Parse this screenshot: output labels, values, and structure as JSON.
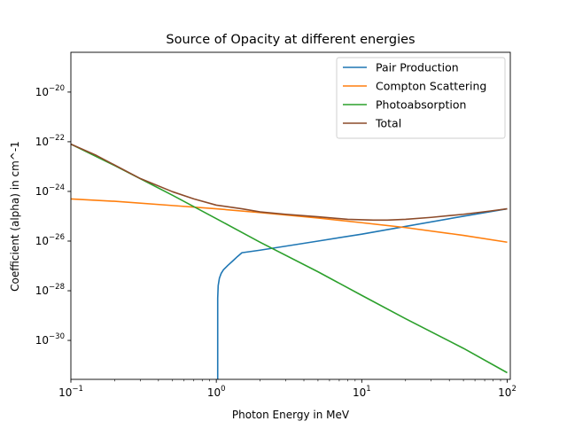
{
  "chart_data": {
    "type": "line",
    "title": "Source of Opacity at different energies",
    "xlabel": "Photon Energy in MeV",
    "ylabel": "Coefficient (alpha) in cm^-1",
    "xscale": "log",
    "yscale": "log",
    "xlim": [
      0.1,
      105
    ],
    "ylim": [
      2.7e-32,
      4e-19
    ],
    "xticks": [
      {
        "value": 0.1,
        "label": "10^-1",
        "base": "10",
        "exp": "−1"
      },
      {
        "value": 1,
        "label": "10^0",
        "base": "10",
        "exp": "0"
      },
      {
        "value": 10,
        "label": "10^1",
        "base": "10",
        "exp": "1"
      },
      {
        "value": 100,
        "label": "10^2",
        "base": "10",
        "exp": "2"
      }
    ],
    "yticks": [
      {
        "value": 1e-30,
        "label": "10^-30",
        "base": "10",
        "exp": "−30"
      },
      {
        "value": 1e-28,
        "label": "10^-28",
        "base": "10",
        "exp": "−28"
      },
      {
        "value": 1e-26,
        "label": "10^-26",
        "base": "10",
        "exp": "−26"
      },
      {
        "value": 1e-24,
        "label": "10^-24",
        "base": "10",
        "exp": "−24"
      },
      {
        "value": 1e-22,
        "label": "10^-22",
        "base": "10",
        "exp": "−22"
      },
      {
        "value": 1e-20,
        "label": "10^-20",
        "base": "10",
        "exp": "−20"
      }
    ],
    "grid": false,
    "legend_position": "top-right",
    "series": [
      {
        "name": "Pair Production",
        "color": "#1f77b4",
        "points": [
          [
            1.022,
            1e-32
          ],
          [
            1.022,
            5e-29
          ],
          [
            1.03,
            1.6e-28
          ],
          [
            1.05,
            3.2e-28
          ],
          [
            1.08,
            5e-28
          ],
          [
            1.12,
            7e-28
          ],
          [
            1.2,
            1.05e-27
          ],
          [
            1.3,
            1.6e-27
          ],
          [
            1.4,
            2.4e-27
          ],
          [
            1.5,
            3.4e-27
          ],
          [
            2,
            4.3e-27
          ],
          [
            5,
            1e-26
          ],
          [
            10,
            1.9e-26
          ],
          [
            20,
            3.9e-26
          ],
          [
            50,
            1e-25
          ],
          [
            100,
            2e-25
          ]
        ]
      },
      {
        "name": "Compton Scattering",
        "color": "#ff7f0e",
        "points": [
          [
            0.1,
            5e-25
          ],
          [
            0.2,
            4e-25
          ],
          [
            0.5,
            2.7e-25
          ],
          [
            1,
            2e-25
          ],
          [
            2,
            1.4e-25
          ],
          [
            5,
            8.5e-26
          ],
          [
            10,
            5.5e-26
          ],
          [
            20,
            3.5e-26
          ],
          [
            50,
            1.7e-26
          ],
          [
            100,
            9e-27
          ]
        ]
      },
      {
        "name": "Photoabsorption",
        "color": "#2ca02c",
        "points": [
          [
            0.1,
            8e-23
          ],
          [
            0.2,
            1.1e-23
          ],
          [
            0.5,
            7e-25
          ],
          [
            1,
            8e-26
          ],
          [
            2,
            9e-27
          ],
          [
            5,
            5.8e-28
          ],
          [
            10,
            6.5e-29
          ],
          [
            20,
            7.5e-30
          ],
          [
            50,
            4.8e-31
          ],
          [
            100,
            5e-32
          ]
        ]
      },
      {
        "name": "Total",
        "color": "#8c4b2a",
        "points": [
          [
            0.1,
            8e-23
          ],
          [
            0.15,
            2.8e-23
          ],
          [
            0.2,
            1.15e-23
          ],
          [
            0.3,
            3.3e-24
          ],
          [
            0.5,
            9.7e-25
          ],
          [
            0.7,
            5e-25
          ],
          [
            1,
            2.8e-25
          ],
          [
            1.5,
            2e-25
          ],
          [
            2,
            1.5e-25
          ],
          [
            3,
            1.2e-25
          ],
          [
            5,
            9.5e-26
          ],
          [
            8,
            7.5e-26
          ],
          [
            12,
            7e-26
          ],
          [
            15,
            7e-26
          ],
          [
            20,
            7.5e-26
          ],
          [
            30,
            9e-26
          ],
          [
            50,
            1.2e-25
          ],
          [
            75,
            1.6e-25
          ],
          [
            100,
            2e-25
          ]
        ]
      }
    ]
  }
}
